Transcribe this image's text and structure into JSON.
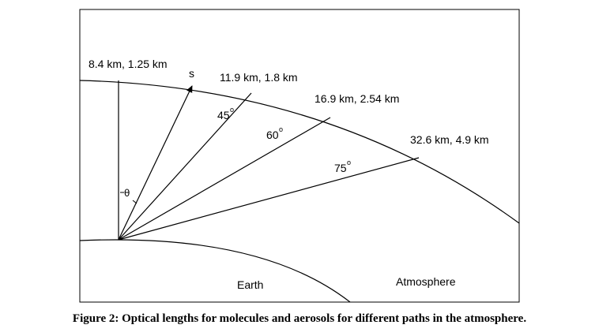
{
  "diagram": {
    "path_labels": [
      {
        "text": "8.4 km,  1.25 km"
      },
      {
        "text": "11.9 km,  1.8 km"
      },
      {
        "text": "16.9 km,  2.54 km"
      },
      {
        "text": "32.6 km, 4.9 km"
      }
    ],
    "s_label": "s",
    "theta_label": "θ",
    "angles": [
      {
        "value": "45",
        "degree": "o"
      },
      {
        "value": "60",
        "degree": "o"
      },
      {
        "value": "75",
        "degree": "o"
      }
    ],
    "earth_label": "Earth",
    "atmosphere_label": "Atmosphere"
  },
  "caption": "Figure 2: Optical lengths for molecules and aerosols for different paths in the atmosphere."
}
